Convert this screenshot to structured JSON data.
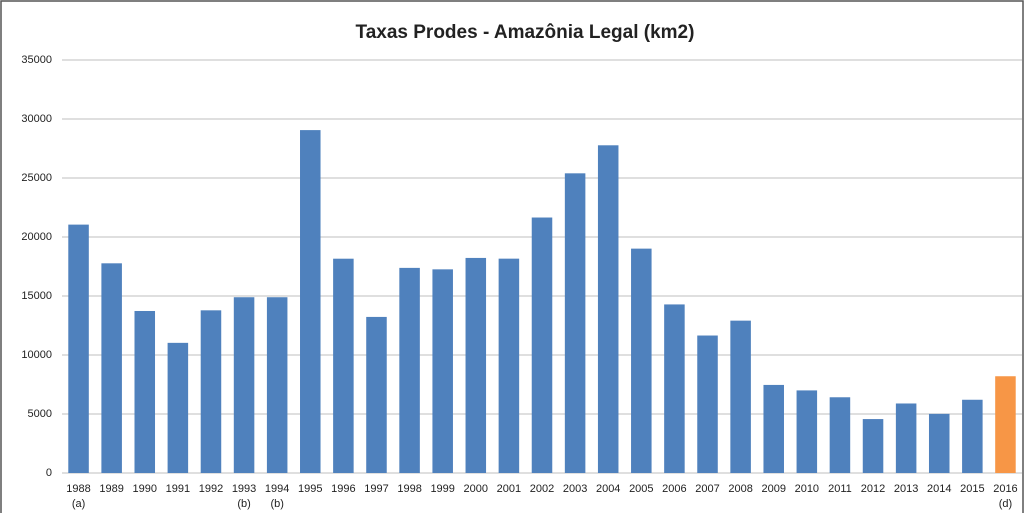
{
  "chart_data": {
    "type": "bar",
    "title": "Taxas Prodes - Amazônia Legal (km2)",
    "categories": [
      "1988",
      "1989",
      "1990",
      "1991",
      "1992",
      "1993",
      "1994",
      "1995",
      "1996",
      "1997",
      "1998",
      "1999",
      "2000",
      "2001",
      "2002",
      "2003",
      "2004",
      "2005",
      "2006",
      "2007",
      "2008",
      "2009",
      "2010",
      "2011",
      "2012",
      "2013",
      "2014",
      "2015",
      "2016"
    ],
    "notes": [
      "(a)",
      null,
      null,
      null,
      null,
      "(b)",
      "(b)",
      null,
      null,
      null,
      null,
      null,
      null,
      null,
      null,
      null,
      null,
      null,
      null,
      null,
      null,
      null,
      null,
      null,
      null,
      null,
      null,
      null,
      "(d)"
    ],
    "values": [
      21050,
      17770,
      13730,
      11030,
      13786,
      14896,
      14896,
      29059,
      18161,
      13227,
      17383,
      17259,
      18226,
      18165,
      21651,
      25396,
      27772,
      19014,
      14286,
      11651,
      12911,
      7464,
      7000,
      6418,
      4571,
      5891,
      5012,
      6207,
      8200
    ],
    "colors": [
      "#4f81bd",
      "#4f81bd",
      "#4f81bd",
      "#4f81bd",
      "#4f81bd",
      "#4f81bd",
      "#4f81bd",
      "#4f81bd",
      "#4f81bd",
      "#4f81bd",
      "#4f81bd",
      "#4f81bd",
      "#4f81bd",
      "#4f81bd",
      "#4f81bd",
      "#4f81bd",
      "#4f81bd",
      "#4f81bd",
      "#4f81bd",
      "#4f81bd",
      "#4f81bd",
      "#4f81bd",
      "#4f81bd",
      "#4f81bd",
      "#4f81bd",
      "#4f81bd",
      "#4f81bd",
      "#4f81bd",
      "#f79646"
    ],
    "ylim": [
      0,
      35000
    ],
    "yticks": [
      0,
      5000,
      10000,
      15000,
      20000,
      25000,
      30000,
      35000
    ],
    "grid": true
  }
}
